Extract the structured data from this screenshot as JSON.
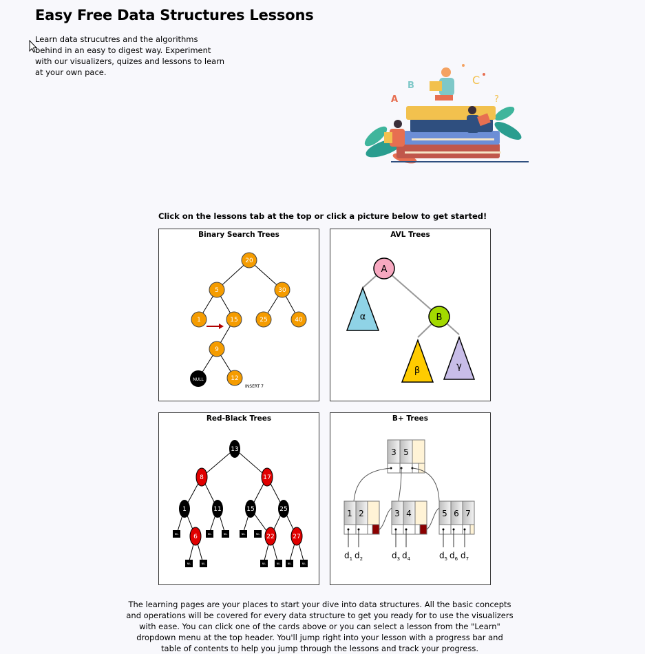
{
  "header": {
    "title": "Easy Free Data Structures Lessons",
    "intro": "Learn data strucutres and the algorithms behind in an easy to digest way. Experiment with our visualizers, quizes and lessons to learn at your own pace."
  },
  "hero": {
    "icon": "reading-people-books-illustration",
    "letters": [
      "A",
      "B",
      "C",
      "?"
    ]
  },
  "prompt": "Click on the lessons tab at the top or click a picture below to get started!",
  "cards": [
    {
      "title": "Binary Search Trees",
      "nodes": [
        "20",
        "5",
        "30",
        "1",
        "15",
        "25",
        "40",
        "9",
        "12",
        "NULL"
      ],
      "caption": "INSERT 7"
    },
    {
      "title": "AVL Trees",
      "nodes": [
        "A",
        "B"
      ],
      "subtrees": [
        "α",
        "β",
        "γ"
      ]
    },
    {
      "title": "Red-Black Trees",
      "nodes": [
        "13",
        "8",
        "17",
        "1",
        "11",
        "15",
        "25",
        "6",
        "22",
        "27"
      ],
      "leaf": "NIL"
    },
    {
      "title": "B+ Trees",
      "root_keys": [
        "3",
        "5"
      ],
      "leaves": [
        [
          "1",
          "2"
        ],
        [
          "3",
          "4"
        ],
        [
          "5",
          "6",
          "7"
        ]
      ],
      "data": [
        "d1",
        "d2",
        "d3",
        "d4",
        "d5",
        "d6",
        "d7"
      ],
      "data_base": "d",
      "data_sub": [
        "1",
        "2",
        "3",
        "4",
        "5",
        "6",
        "7"
      ]
    }
  ],
  "footer": "The learning pages are your places to start your dive into data structures. All the basic concepts and operations will be covered for every data structure to get you ready for to use the visualizers with ease. You can click one of the cards above or you can select a lesson from the \"Learn\" dropdown menu at the top header. You'll jump right into your lesson with a progress bar and table of contents to help you jump through the lessons and track your progress.",
  "colors": {
    "bst_node": "#f59c00",
    "avl_a": "#f7a8c0",
    "avl_b": "#a3d900",
    "avl_alpha": "#8fd3e6",
    "avl_beta": "#ffcc00",
    "avl_gamma": "#c8bde8",
    "rb_red": "#e00000",
    "rb_black": "#000000",
    "bplus_leaf": "#fff3d6",
    "bplus_ptr": "#8b0000"
  }
}
